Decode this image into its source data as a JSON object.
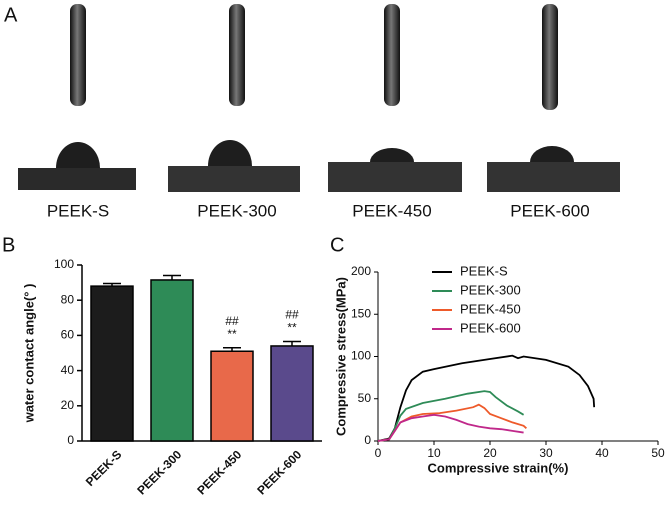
{
  "panel_a": {
    "label": "A",
    "samples": [
      "PEEK-S",
      "PEEK-300",
      "PEEK-450",
      "PEEK-600"
    ]
  },
  "chart_data": [
    {
      "type": "bar",
      "panel_label": "B",
      "ylabel": "water contact angle(° )",
      "categories": [
        "PEEK-S",
        "PEEK-300",
        "PEEK-450",
        "PEEK-600"
      ],
      "values": [
        88,
        91.5,
        51,
        54
      ],
      "errors": [
        1.5,
        2.5,
        2,
        2.5
      ],
      "colors": [
        "#1c1c1c",
        "#2e8b57",
        "#e8694a",
        "#5a4a8c"
      ],
      "ylim": [
        0,
        100
      ],
      "yticks": [
        0,
        20,
        40,
        60,
        80,
        100
      ],
      "annotations": [
        {
          "category": "PEEK-450",
          "text": [
            "##",
            "**"
          ]
        },
        {
          "category": "PEEK-600",
          "text": [
            "##",
            "**"
          ]
        }
      ]
    },
    {
      "type": "line",
      "panel_label": "C",
      "xlabel": "Compressive strain(%)",
      "ylabel": "Compressive stress(MPa)",
      "xlim": [
        0,
        50
      ],
      "xticks": [
        0,
        10,
        20,
        30,
        40,
        50
      ],
      "ylim": [
        0,
        200
      ],
      "yticks": [
        0,
        50,
        100,
        150,
        200
      ],
      "legend": "upper left",
      "series": [
        {
          "name": "PEEK-S",
          "color": "#000000",
          "x": [
            0,
            2,
            3,
            4,
            5,
            6,
            8,
            10,
            15,
            20,
            24,
            25,
            26,
            30,
            34,
            36,
            37.5,
            38.5,
            38.6
          ],
          "values": [
            0,
            3,
            15,
            40,
            60,
            72,
            82,
            85,
            92,
            97,
            101,
            98,
            100,
            96,
            88,
            78,
            65,
            50,
            40
          ]
        },
        {
          "name": "PEEK-300",
          "color": "#2e8b57",
          "x": [
            0,
            2,
            3,
            4,
            5,
            8,
            12,
            16,
            19,
            20,
            21,
            23,
            25,
            26
          ],
          "values": [
            0,
            2,
            15,
            30,
            38,
            45,
            50,
            56,
            59,
            58,
            52,
            42,
            35,
            31
          ]
        },
        {
          "name": "PEEK-450",
          "color": "#ee5a2a",
          "x": [
            0,
            2,
            3,
            4,
            6,
            8,
            11,
            14,
            17,
            18,
            19,
            20,
            22,
            24,
            26,
            26.5
          ],
          "values": [
            0,
            2,
            12,
            22,
            29,
            32,
            33,
            36,
            40,
            43,
            39,
            32,
            27,
            22,
            18,
            15
          ]
        },
        {
          "name": "PEEK-600",
          "color": "#c0288a",
          "x": [
            0,
            2,
            3,
            4,
            6,
            8,
            10,
            12,
            14,
            16,
            18,
            20,
            22,
            24,
            26
          ],
          "values": [
            0,
            2,
            12,
            22,
            27,
            29,
            31,
            29,
            25,
            20,
            17,
            15,
            14,
            12,
            10
          ]
        }
      ]
    }
  ]
}
